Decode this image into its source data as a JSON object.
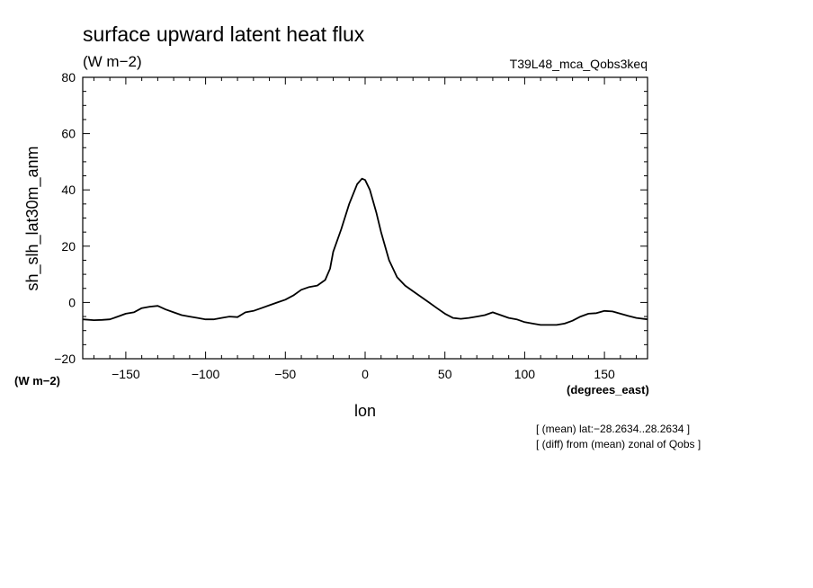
{
  "chart_data": {
    "type": "line",
    "title": "surface upward latent heat flux",
    "units": "(W m−2)",
    "run_label": "T39L48_mca_Qobs3keq",
    "xlabel": "lon",
    "x_units": "(degrees_east)",
    "ylabel": "sh_slh_lat30m_anm",
    "y_units": "(W m−2)",
    "xlim": [
      -177,
      177
    ],
    "ylim": [
      -20,
      80
    ],
    "x_ticks": [
      -150,
      -100,
      -50,
      0,
      50,
      100,
      150
    ],
    "x_tick_labels": [
      "−150",
      "−100",
      "−50",
      "0",
      "50",
      "100",
      "150"
    ],
    "y_ticks": [
      -20,
      0,
      20,
      40,
      60,
      80
    ],
    "y_tick_labels": [
      "−20",
      "0",
      "20",
      "40",
      "60",
      "80"
    ],
    "grid": false,
    "notes": [
      "[ (mean) lat:−28.2634..28.2634 ]",
      "[ (diff) from (mean) zonal of Qobs ]"
    ],
    "series": [
      {
        "x": [
          -177,
          -170,
          -165,
          -160,
          -155,
          -150,
          -145,
          -140,
          -135,
          -130,
          -125,
          -120,
          -115,
          -110,
          -105,
          -100,
          -95,
          -90,
          -85,
          -80,
          -75,
          -70,
          -65,
          -60,
          -55,
          -50,
          -45,
          -40,
          -35,
          -30,
          -25,
          -22,
          -20,
          -15,
          -10,
          -5,
          -2,
          0,
          3,
          7,
          10,
          15,
          20,
          25,
          30,
          35,
          40,
          45,
          50,
          55,
          60,
          65,
          70,
          75,
          80,
          85,
          90,
          95,
          100,
          105,
          110,
          115,
          120,
          125,
          130,
          135,
          140,
          145,
          150,
          155,
          160,
          165,
          170,
          177
        ],
        "y": [
          -6,
          -6.3,
          -6.2,
          -6,
          -5,
          -4,
          -3.5,
          -2,
          -1.5,
          -1.2,
          -2.5,
          -3.5,
          -4.5,
          -5,
          -5.5,
          -6,
          -6,
          -5.5,
          -5,
          -5.2,
          -3.5,
          -3,
          -2,
          -1,
          0,
          1,
          2.5,
          4.5,
          5.5,
          6,
          8,
          12,
          18,
          26,
          35,
          42,
          44,
          43.5,
          40,
          32,
          25,
          15,
          9,
          6,
          4,
          2,
          0,
          -2,
          -4,
          -5.5,
          -5.8,
          -5.5,
          -5,
          -4.5,
          -3.5,
          -4.5,
          -5.5,
          -6,
          -7,
          -7.5,
          -8,
          -8,
          -8,
          -7.5,
          -6.5,
          -5,
          -4,
          -3.8,
          -3,
          -3.2,
          -4,
          -4.8,
          -5.5,
          -6
        ]
      }
    ]
  }
}
